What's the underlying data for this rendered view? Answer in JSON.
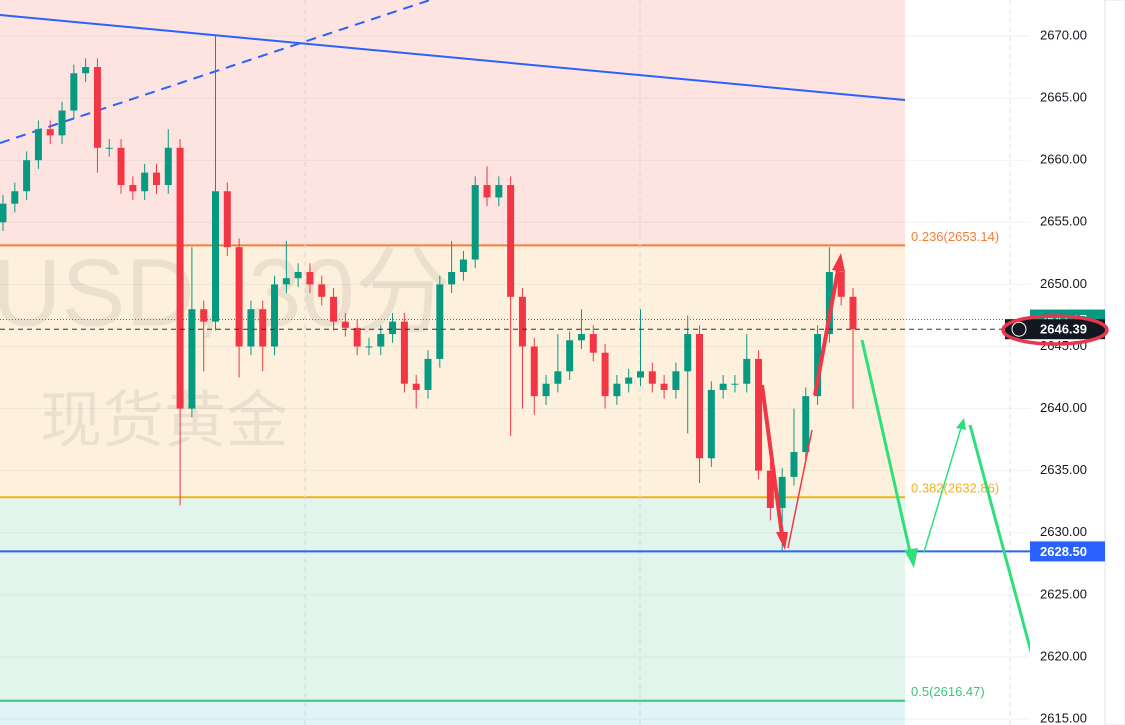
{
  "chart_data": {
    "type": "candlestick",
    "watermark": [
      "USD, 30分",
      "现货黄金"
    ],
    "ylim": [
      2614.52,
      2672.9
    ],
    "yticks": [
      {
        "value": 2615,
        "label": "2615.00"
      },
      {
        "value": 2620,
        "label": "2620.00"
      },
      {
        "value": 2625,
        "label": "2625.00"
      },
      {
        "value": 2630,
        "label": "2630.00"
      },
      {
        "value": 2635,
        "label": "2635.00"
      },
      {
        "value": 2640,
        "label": "2640.00"
      },
      {
        "value": 2645,
        "label": "2645.00"
      },
      {
        "value": 2650,
        "label": "2650.00"
      },
      {
        "value": 2655,
        "label": "2655.00"
      },
      {
        "value": 2660,
        "label": "2660.00"
      },
      {
        "value": 2665,
        "label": "2665.00"
      },
      {
        "value": 2670,
        "label": "2670.00"
      }
    ],
    "grid": true,
    "up_color": "#089981",
    "down_color": "#f23645",
    "fib_levels": [
      {
        "value": 2653.14,
        "label": "0.236(2653.14)",
        "color": "#f57c3a"
      },
      {
        "value": 2632.86,
        "label": "0.382(2632.86)",
        "color": "#f0b21b"
      },
      {
        "value": 2616.47,
        "label": "0.5(2616.47)",
        "color": "#3cc47c"
      }
    ],
    "support_line": {
      "value": 2628.5,
      "label": "2628.50",
      "color": "#2962ff"
    },
    "prev_price": 2647.17,
    "last_price": 2646.39,
    "open": [
      2655,
      2656.5,
      2657.5,
      2660,
      2662.5,
      2662,
      2664,
      2667,
      2667.5,
      2661,
      2661,
      2658,
      2657.5,
      2659,
      2658,
      2661,
      2640,
      2648,
      2647,
      2657.5,
      2653,
      2645,
      2648,
      2645,
      2650,
      2650.5,
      2651,
      2650,
      2649,
      2647,
      2646.5,
      2645,
      2645,
      2646,
      2647,
      2642,
      2641.5,
      2644,
      2650,
      2651,
      2652,
      2658,
      2657,
      2658,
      2649,
      2645,
      2641,
      2642,
      2643,
      2645.5,
      2646,
      2644.5,
      2641,
      2642,
      2642.5,
      2643,
      2642,
      2641.5,
      2643,
      2646,
      2636,
      2641.5,
      2642,
      2642,
      2644,
      2635,
      2632,
      2634.5,
      2636.5,
      2641,
      2646,
      2651,
      2649
    ],
    "high": [
      2657.2,
      2658.2,
      2660.7,
      2663.2,
      2663.2,
      2664.7,
      2667.7,
      2668.2,
      2668.2,
      2661.7,
      2661.7,
      2658.7,
      2659.7,
      2659.7,
      2662.5,
      2661.7,
      2653,
      2648.7,
      2670,
      2658.2,
      2653.7,
      2648.7,
      2648.7,
      2650.7,
      2653.5,
      2651.7,
      2651.7,
      2650.7,
      2649.7,
      2647.7,
      2647.2,
      2645.7,
      2646.7,
      2647.7,
      2647.7,
      2642.7,
      2644.7,
      2650.7,
      2653.5,
      2652.7,
      2658.7,
      2659.5,
      2658.7,
      2658.7,
      2649.7,
      2645.7,
      2642.7,
      2646,
      2646.2,
      2648,
      2646.7,
      2645.2,
      2642.7,
      2643.2,
      2648,
      2643.7,
      2642.7,
      2643.7,
      2647.5,
      2646.7,
      2642.2,
      2642.7,
      2642.7,
      2646,
      2644.7,
      2635.7,
      2635.2,
      2640,
      2641.7,
      2646.7,
      2653,
      2651.7,
      2649.7
    ],
    "low": [
      2654.3,
      2655.8,
      2656.8,
      2659.3,
      2661.3,
      2661.3,
      2663.3,
      2666.3,
      2659,
      2660.3,
      2657.3,
      2656.8,
      2656.8,
      2657.3,
      2657.3,
      2632.2,
      2639.3,
      2643,
      2646.3,
      2652.3,
      2642.5,
      2644.3,
      2643,
      2644.3,
      2649.3,
      2649.8,
      2649.3,
      2648.3,
      2646.3,
      2645.8,
      2644.3,
      2644.3,
      2644.3,
      2645.3,
      2641.3,
      2640,
      2640.8,
      2643.3,
      2649.3,
      2650.3,
      2651.3,
      2656.3,
      2656.3,
      2637.8,
      2640,
      2639.5,
      2640.3,
      2641.3,
      2642.3,
      2644.8,
      2643.8,
      2640,
      2640.3,
      2641.3,
      2641.8,
      2641.3,
      2640.8,
      2640.8,
      2638,
      2634,
      2635.3,
      2640.8,
      2641.3,
      2641.3,
      2634.3,
      2631,
      2628.5,
      2633.8,
      2635.8,
      2640.3,
      2645.3,
      2648.3,
      2640
    ],
    "close": [
      2656.5,
      2657.5,
      2660,
      2662.5,
      2662,
      2664,
      2667,
      2667.5,
      2661,
      2661,
      2658,
      2657.5,
      2659,
      2658,
      2661,
      2640,
      2648,
      2647,
      2657.5,
      2653,
      2645,
      2648,
      2645,
      2650,
      2650.5,
      2651,
      2650,
      2649,
      2647,
      2646.5,
      2645,
      2645,
      2646,
      2647,
      2642,
      2641.5,
      2644,
      2650,
      2651,
      2652,
      2658,
      2657,
      2658,
      2649,
      2645,
      2641,
      2642,
      2643,
      2645.5,
      2646,
      2644.5,
      2641,
      2642,
      2642.5,
      2643,
      2642,
      2641.5,
      2643,
      2646,
      2636,
      2641.5,
      2642,
      2642,
      2644,
      2635,
      2632,
      2634.5,
      2636.5,
      2641,
      2646,
      2651,
      2649,
      2646.39
    ]
  }
}
